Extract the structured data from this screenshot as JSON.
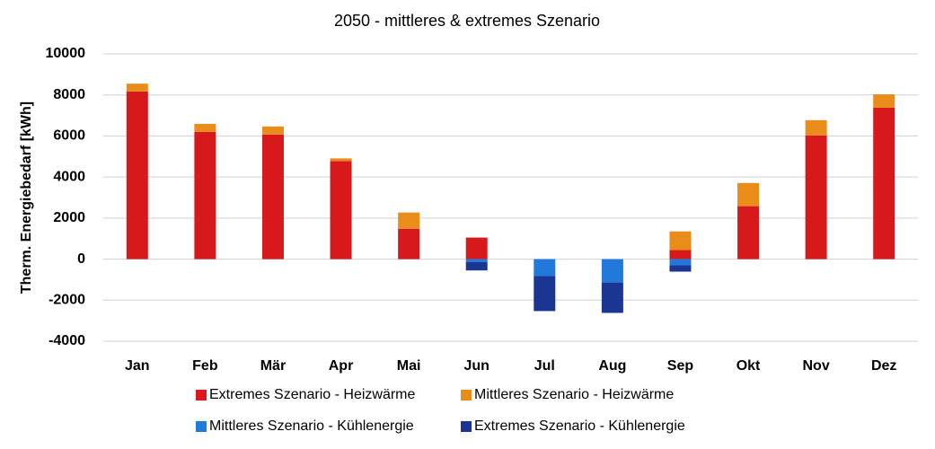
{
  "chart_data": {
    "type": "stacked_bar",
    "title": "2050 - mittleres & extremes Szenario",
    "y_label": "Therm. Energiebedarf [kWh]",
    "categories": [
      "Jan",
      "Feb",
      "Mär",
      "Apr",
      "Mai",
      "Jun",
      "Jul",
      "Aug",
      "Sep",
      "Okt",
      "Nov",
      "Dez"
    ],
    "series": [
      {
        "name": "Extremes Szenario - Heizwärme",
        "color": "#d7191c",
        "values": [
          8170,
          6200,
          6070,
          4780,
          1480,
          1050,
          0,
          0,
          440,
          2580,
          6030,
          7380
        ]
      },
      {
        "name": "Mittleres Szenario - Heizwärme",
        "color": "#e98c1a",
        "values": [
          380,
          390,
          390,
          130,
          790,
          0,
          0,
          0,
          910,
          1130,
          740,
          650
        ]
      },
      {
        "name": "Mittleres Szenario - Kühlenergie",
        "color": "#2179dc",
        "values": [
          0,
          0,
          0,
          0,
          0,
          -150,
          -830,
          -1140,
          -300,
          0,
          0,
          0
        ]
      },
      {
        "name": "Extremes Szenario - Kühlenergie",
        "color": "#1a3592",
        "values": [
          0,
          0,
          0,
          0,
          0,
          -400,
          -1700,
          -1480,
          -310,
          0,
          0,
          0
        ]
      }
    ],
    "ylim": [
      -4000,
      10000
    ],
    "yticks": [
      -4000,
      -2000,
      0,
      2000,
      4000,
      6000,
      8000,
      10000
    ],
    "grid": true
  }
}
